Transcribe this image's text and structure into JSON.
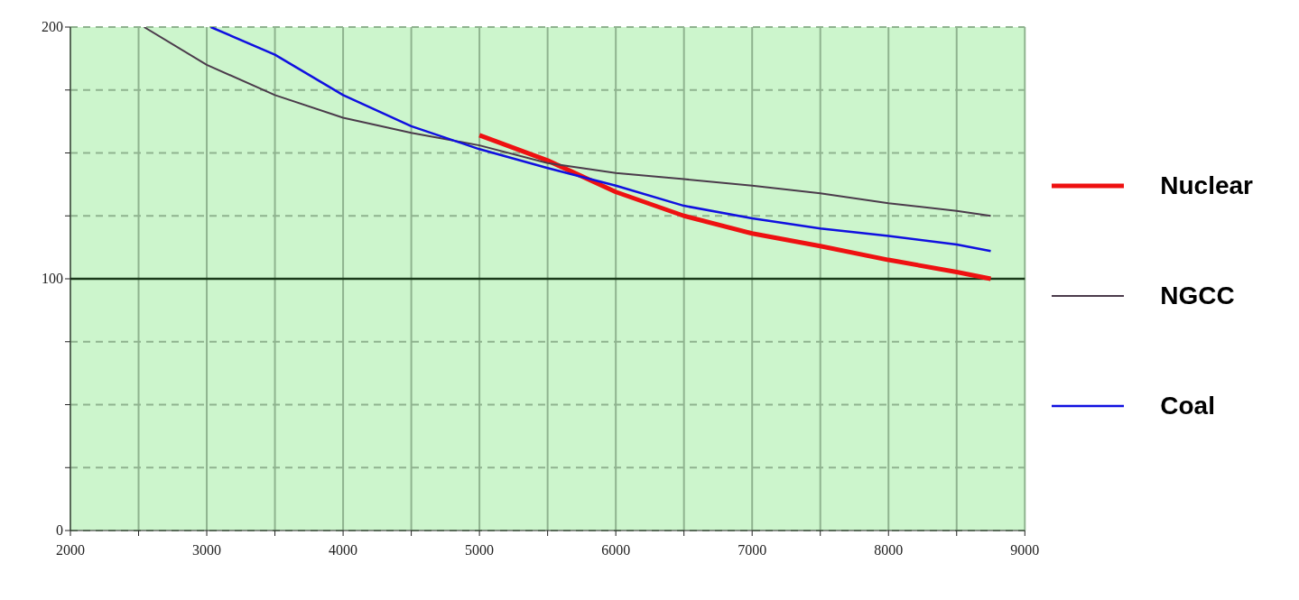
{
  "chart_data": {
    "type": "line",
    "xlim": [
      2000,
      9000
    ],
    "ylim": [
      0,
      200
    ],
    "xticks": [
      2000,
      {
        "value": 2500,
        "label": null
      },
      3000,
      {
        "value": 3500,
        "label": null
      },
      4000,
      {
        "value": 4500,
        "label": null
      },
      5000,
      {
        "value": 5500,
        "label": null
      },
      6000,
      {
        "value": 6500,
        "label": null
      },
      7000,
      {
        "value": 7500,
        "label": null
      },
      8000,
      {
        "value": 8500,
        "label": null
      },
      9000
    ],
    "yticks": [
      0,
      {
        "value": 25,
        "label": null
      },
      {
        "value": 50,
        "label": null
      },
      {
        "value": 75,
        "label": null
      },
      100,
      {
        "value": 125,
        "label": null
      },
      {
        "value": 150,
        "label": null
      },
      {
        "value": 175,
        "label": null
      },
      200
    ],
    "grid": true,
    "legend": "right",
    "marker": "none",
    "line_style": "solid",
    "ref_lines": [
      {
        "axis": "y",
        "value": 100,
        "color": "#1a3a1a",
        "line_style": "solid"
      }
    ],
    "series": [
      {
        "name": "Nuclear",
        "color": "#ee1111",
        "x": [
          5000,
          5500,
          6000,
          6500,
          7000,
          7500,
          8000,
          8500,
          8750
        ],
        "values": [
          157,
          147,
          134.5,
          125,
          118,
          113,
          107.5,
          102.7,
          100
        ]
      },
      {
        "name": "NGCC",
        "color": "#4b3b4b",
        "x": [
          2540,
          3000,
          3500,
          4000,
          4500,
          5000,
          5500,
          6000,
          6500,
          7000,
          7500,
          8000,
          8500,
          8750
        ],
        "values": [
          200,
          185,
          173,
          164,
          158,
          153,
          146,
          142,
          139.6,
          137,
          134,
          130,
          127,
          125
        ]
      },
      {
        "name": "Coal",
        "color": "#1010e0",
        "x": [
          3030,
          3500,
          4000,
          4500,
          5000,
          5500,
          6000,
          6500,
          7000,
          7500,
          8000,
          8500,
          8750
        ],
        "values": [
          200,
          189,
          173,
          160.6,
          151.5,
          144,
          137,
          129,
          124,
          120,
          117,
          113.6,
          111
        ]
      }
    ]
  }
}
